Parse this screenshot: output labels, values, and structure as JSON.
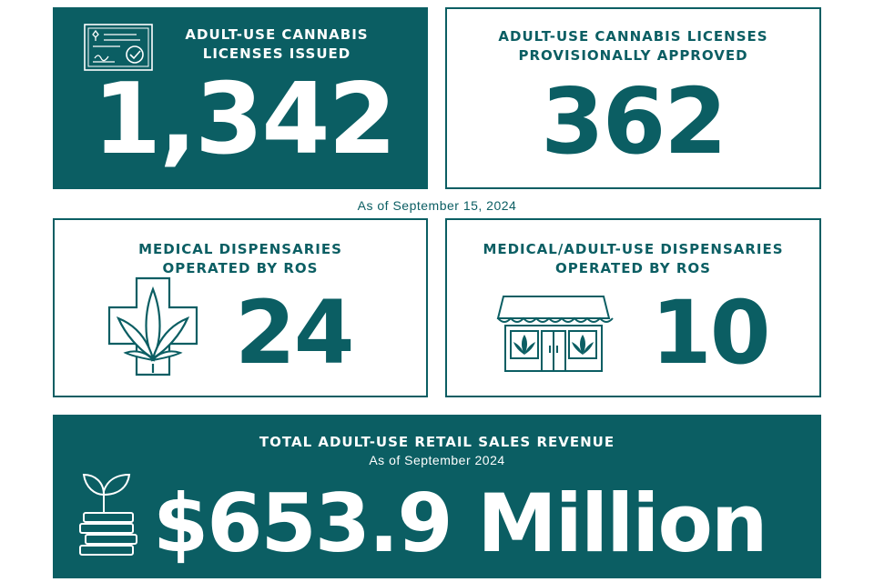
{
  "colors": {
    "brand": "#0b5e63",
    "background": "#ffffff"
  },
  "cards": {
    "licenses_issued": {
      "title_line1": "ADULT-USE CANNABIS",
      "title_line2": "LICENSES ISSUED",
      "value": "1,342",
      "icon": "certificate-icon"
    },
    "provisionally_approved": {
      "title_line1": "ADULT-USE CANNABIS LICENSES",
      "title_line2": "PROVISIONALLY APPROVED",
      "value": "362"
    },
    "as_of_date": "As of September 15, 2024",
    "medical_dispensaries": {
      "title_line1": "MEDICAL DISPENSARIES",
      "title_line2": "OPERATED BY ROS",
      "value": "24",
      "icon": "cannabis-leaf-cross-icon"
    },
    "medical_adult_dispensaries": {
      "title_line1": "MEDICAL/ADULT-USE DISPENSARIES",
      "title_line2": "OPERATED BY ROS",
      "value": "10",
      "icon": "storefront-icon"
    },
    "revenue": {
      "title": "TOTAL ADULT-USE RETAIL SALES REVENUE",
      "subtitle": "As of September 2024",
      "value": "$653.9 Million",
      "icon": "coins-sprout-icon"
    }
  }
}
